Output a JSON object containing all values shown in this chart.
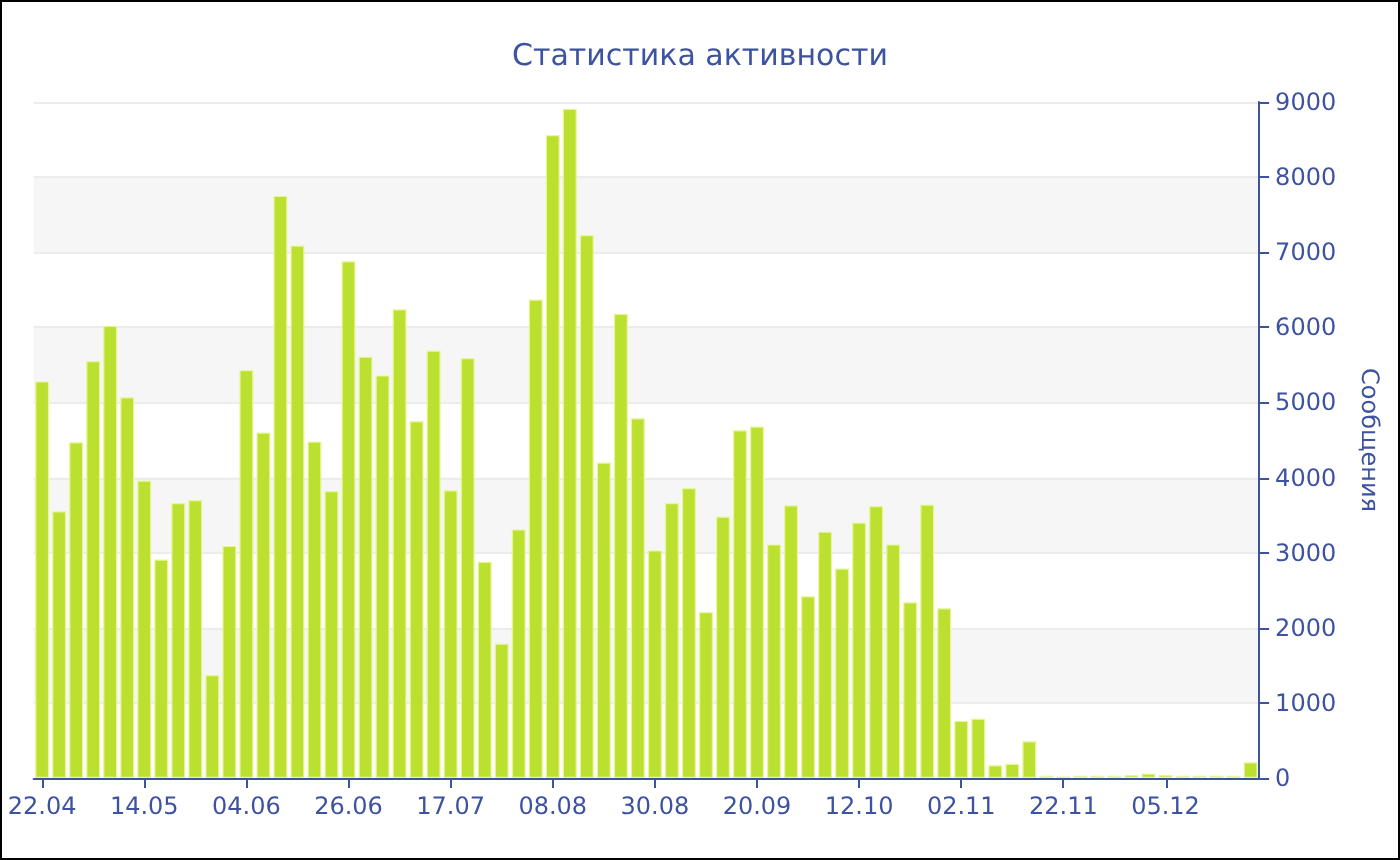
{
  "chart_data": {
    "type": "bar",
    "title": "Статистика активности",
    "y2label": "Сообщения",
    "categories": [
      "22.04",
      null,
      null,
      null,
      null,
      null,
      "14.05",
      null,
      null,
      null,
      null,
      null,
      "04.06",
      null,
      null,
      null,
      null,
      null,
      "26.06",
      null,
      null,
      null,
      null,
      null,
      "17.07",
      null,
      null,
      null,
      null,
      null,
      "08.08",
      null,
      null,
      null,
      null,
      null,
      "30.08",
      null,
      null,
      null,
      null,
      null,
      "20.09",
      null,
      null,
      null,
      null,
      null,
      "12.10",
      null,
      null,
      null,
      null,
      null,
      "02.11",
      null,
      null,
      null,
      null,
      null,
      "22.11",
      null,
      null,
      null,
      null,
      null,
      "05.12",
      null,
      null,
      null,
      null,
      null
    ],
    "series": [
      {
        "color": "#bce030",
        "axis": "y2",
        "values": [
          5280,
          3550,
          4470,
          5550,
          6020,
          5070,
          3960,
          2910,
          3660,
          3700,
          1370,
          3090,
          5430,
          4600,
          7750,
          7090,
          4480,
          3820,
          6880,
          5610,
          5360,
          6240,
          4750,
          5690,
          3830,
          5590,
          2880,
          1790,
          3310,
          6370,
          8560,
          8910,
          7230,
          4200,
          6180,
          4790,
          3030,
          3660,
          3860,
          2210,
          3480,
          4630,
          4680,
          3110,
          3630,
          2420,
          3280,
          2790,
          3400,
          3620,
          3110,
          2340,
          3640,
          2260,
          760,
          790,
          170,
          190,
          490,
          30,
          20,
          30,
          30,
          30,
          40,
          60,
          40,
          30,
          30,
          30,
          30,
          210
        ]
      }
    ],
    "y2lim": [
      0,
      9000
    ],
    "y2ticks": [
      0,
      1000,
      2000,
      3000,
      4000,
      5000,
      6000,
      7000,
      8000,
      9000
    ],
    "grid": "y"
  }
}
